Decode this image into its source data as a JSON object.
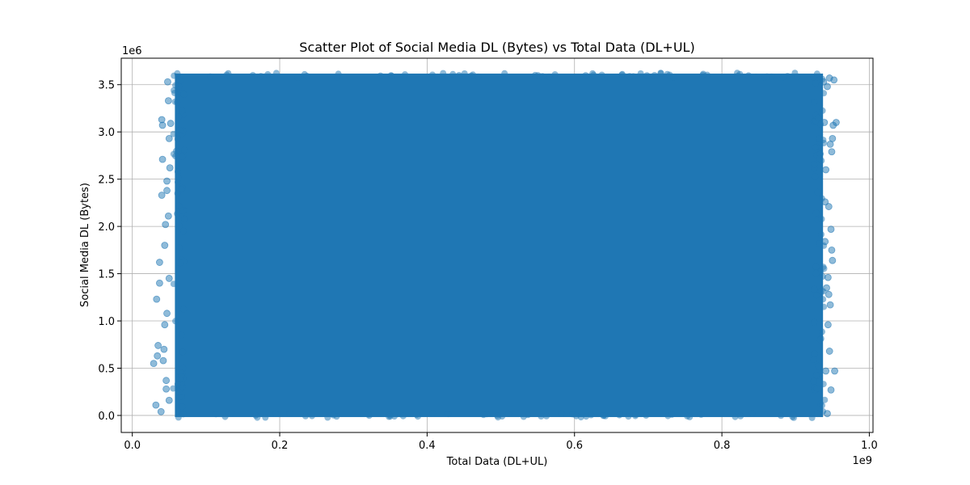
{
  "chart_data": {
    "type": "scatter",
    "title": "Scatter Plot of Social Media DL (Bytes) vs Total Data (DL+UL)",
    "xlabel": "Total Data (DL+UL)",
    "ylabel": "Social Media DL (Bytes)",
    "x_exponent_label": "1e9",
    "y_exponent_label": "1e6",
    "x_scale": 1000000000,
    "y_scale": 1000000,
    "xlim": [
      -0.015,
      1.005
    ],
    "ylim": [
      -0.18,
      3.78
    ],
    "x_ticks": [
      0.0,
      0.2,
      0.4,
      0.6,
      0.8,
      1.0
    ],
    "x_tick_labels": [
      "0.0",
      "0.2",
      "0.4",
      "0.6",
      "0.8",
      "1.0"
    ],
    "y_ticks": [
      0.0,
      0.5,
      1.0,
      1.5,
      2.0,
      2.5,
      3.0,
      3.5
    ],
    "y_tick_labels": [
      "0.0",
      "0.5",
      "1.0",
      "1.5",
      "2.0",
      "2.5",
      "3.0",
      "3.5"
    ],
    "grid": true,
    "legend": "none",
    "color": "#1f77b4",
    "alpha": 0.5,
    "dense_region": {
      "x_range": [
        0.06,
        0.935
      ],
      "y_range": [
        0.0,
        3.6
      ]
    },
    "points": [
      {
        "x": 0.029,
        "y": 0.55
      },
      {
        "x": 0.032,
        "y": 0.11
      },
      {
        "x": 0.033,
        "y": 1.23
      },
      {
        "x": 0.034,
        "y": 0.63
      },
      {
        "x": 0.035,
        "y": 0.74
      },
      {
        "x": 0.037,
        "y": 1.4
      },
      {
        "x": 0.037,
        "y": 1.62
      },
      {
        "x": 0.039,
        "y": 0.04
      },
      {
        "x": 0.04,
        "y": 2.33
      },
      {
        "x": 0.04,
        "y": 3.13
      },
      {
        "x": 0.041,
        "y": 3.07
      },
      {
        "x": 0.041,
        "y": 2.71
      },
      {
        "x": 0.042,
        "y": 0.58
      },
      {
        "x": 0.043,
        "y": 0.7
      },
      {
        "x": 0.044,
        "y": 1.8
      },
      {
        "x": 0.044,
        "y": 0.96
      },
      {
        "x": 0.045,
        "y": 2.02
      },
      {
        "x": 0.046,
        "y": 0.28
      },
      {
        "x": 0.046,
        "y": 0.37
      },
      {
        "x": 0.047,
        "y": 1.08
      },
      {
        "x": 0.047,
        "y": 2.38
      },
      {
        "x": 0.047,
        "y": 2.48
      },
      {
        "x": 0.048,
        "y": 3.53
      },
      {
        "x": 0.049,
        "y": 3.33
      },
      {
        "x": 0.049,
        "y": 2.11
      },
      {
        "x": 0.05,
        "y": 0.16
      },
      {
        "x": 0.05,
        "y": 1.45
      },
      {
        "x": 0.05,
        "y": 2.93
      },
      {
        "x": 0.051,
        "y": 2.62
      },
      {
        "x": 0.052,
        "y": 3.09
      },
      {
        "x": 0.938,
        "y": 3.53
      },
      {
        "x": 0.939,
        "y": 3.1
      },
      {
        "x": 0.94,
        "y": 2.26
      },
      {
        "x": 0.94,
        "y": 1.84
      },
      {
        "x": 0.941,
        "y": 2.6
      },
      {
        "x": 0.941,
        "y": 0.47
      },
      {
        "x": 0.942,
        "y": 1.35
      },
      {
        "x": 0.943,
        "y": 3.48
      },
      {
        "x": 0.943,
        "y": 0.02
      },
      {
        "x": 0.944,
        "y": 1.46
      },
      {
        "x": 0.944,
        "y": 0.96
      },
      {
        "x": 0.945,
        "y": 2.21
      },
      {
        "x": 0.945,
        "y": 1.28
      },
      {
        "x": 0.946,
        "y": 0.68
      },
      {
        "x": 0.946,
        "y": 3.57
      },
      {
        "x": 0.947,
        "y": 1.17
      },
      {
        "x": 0.947,
        "y": 2.87
      },
      {
        "x": 0.948,
        "y": 1.97
      },
      {
        "x": 0.948,
        "y": 0.27
      },
      {
        "x": 0.949,
        "y": 1.75
      },
      {
        "x": 0.95,
        "y": 2.93
      },
      {
        "x": 0.95,
        "y": 1.64
      },
      {
        "x": 0.951,
        "y": 3.07
      },
      {
        "x": 0.952,
        "y": 3.55
      },
      {
        "x": 0.953,
        "y": 0.47
      },
      {
        "x": 0.955,
        "y": 3.1
      },
      {
        "x": 0.949,
        "y": 2.79
      }
    ]
  }
}
